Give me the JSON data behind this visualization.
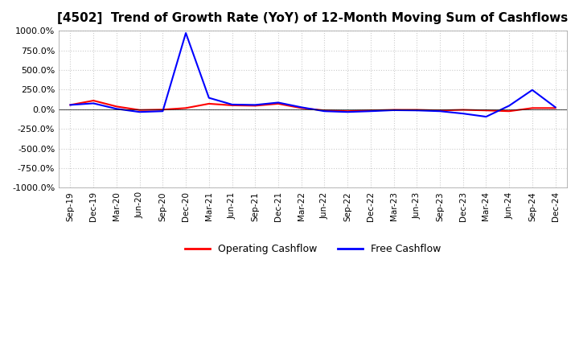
{
  "title": "[4502]  Trend of Growth Rate (YoY) of 12-Month Moving Sum of Cashflows",
  "title_fontsize": 11,
  "ylim": [
    -1000,
    1000
  ],
  "yticks": [
    -1000,
    -750,
    -500,
    -250,
    0,
    250,
    500,
    750,
    1000
  ],
  "ytick_labels": [
    "-1000.0%",
    "-750.0%",
    "-500.0%",
    "-250.0%",
    "0.0%",
    "250.0%",
    "500.0%",
    "750.0%",
    "1000.0%"
  ],
  "legend_entries": [
    "Operating Cashflow",
    "Free Cashflow"
  ],
  "legend_colors": [
    "red",
    "blue"
  ],
  "background_color": "#ffffff",
  "grid_color": "#cccccc",
  "x_labels": [
    "Sep-19",
    "Dec-19",
    "Mar-20",
    "Jun-20",
    "Sep-20",
    "Dec-20",
    "Mar-21",
    "Jun-21",
    "Sep-21",
    "Dec-21",
    "Mar-22",
    "Jun-22",
    "Sep-22",
    "Dec-22",
    "Mar-23",
    "Jun-23",
    "Sep-23",
    "Dec-23",
    "Mar-24",
    "Jun-24",
    "Sep-24",
    "Dec-24"
  ],
  "operating_cashflow": [
    55,
    110,
    35,
    -10,
    -5,
    15,
    70,
    50,
    45,
    70,
    15,
    -15,
    -25,
    -15,
    -8,
    -8,
    -15,
    -8,
    -15,
    -25,
    15,
    15
  ],
  "free_cashflow": [
    55,
    75,
    5,
    -35,
    -25,
    970,
    145,
    60,
    55,
    85,
    25,
    -25,
    -35,
    -25,
    -12,
    -15,
    -25,
    -55,
    -95,
    45,
    245,
    25
  ]
}
